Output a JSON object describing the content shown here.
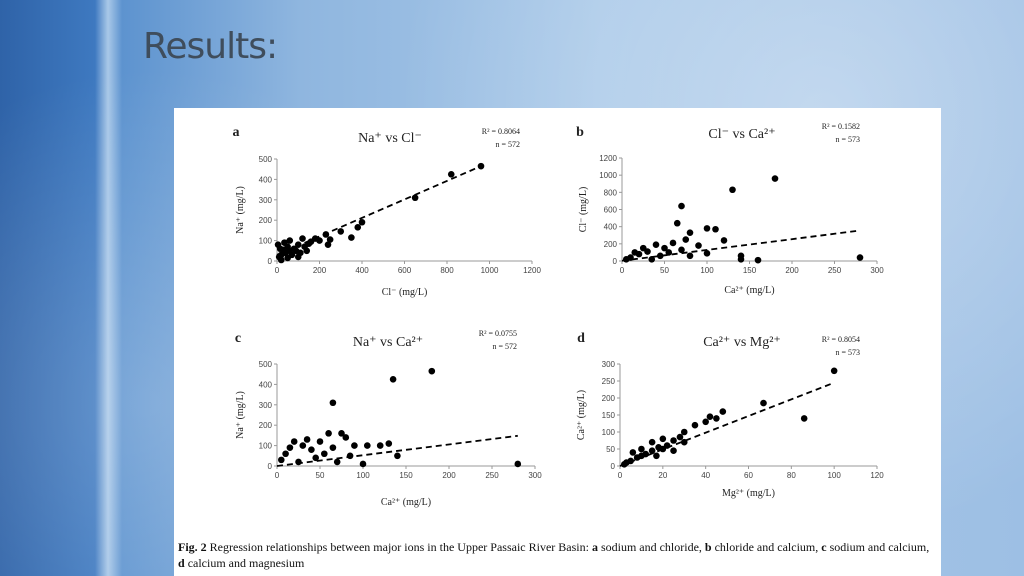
{
  "slide": {
    "title": "Results:"
  },
  "chart_data": [
    {
      "type": "scatter",
      "label": "a",
      "title": "Na⁺ vs Cl⁻",
      "r2": "R² = 0.8064",
      "n": "n = 572",
      "x_label": "Cl⁻ (mg/L)",
      "y_label": "Na⁺ (mg/L)",
      "color": "#000000",
      "x": [
        960,
        820,
        650,
        400,
        380,
        350,
        300,
        230,
        200,
        180,
        150,
        120,
        100,
        80,
        60,
        50,
        40,
        30,
        20,
        10,
        5,
        15,
        70,
        90,
        110,
        130,
        160,
        250,
        240,
        20,
        50,
        100,
        140,
        60,
        35
      ],
      "values": [
        465,
        425,
        310,
        190,
        165,
        115,
        145,
        130,
        100,
        110,
        85,
        110,
        80,
        60,
        50,
        70,
        40,
        55,
        30,
        20,
        80,
        60,
        30,
        50,
        40,
        70,
        95,
        105,
        80,
        5,
        15,
        20,
        50,
        100,
        90
      ],
      "trendline": {
        "x": [
          0,
          960
        ],
        "y": [
          30,
          465
        ]
      },
      "xlim": [
        0,
        1200
      ],
      "xticks": [
        0,
        200,
        400,
        600,
        800,
        1000,
        1200
      ],
      "ylim": [
        0,
        500
      ],
      "yticks": [
        0,
        100,
        200,
        300,
        400,
        500
      ]
    },
    {
      "type": "scatter",
      "label": "b",
      "title": "Cl⁻ vs Ca²⁺",
      "r2": "R² = 0.1582",
      "n": "n = 573",
      "x_label": "Ca²⁺ (mg/L)",
      "y_label": "Cl⁻ (mg/L)",
      "color": "#000000",
      "x": [
        180,
        130,
        70,
        110,
        100,
        65,
        80,
        160,
        280,
        140,
        140,
        120,
        90,
        60,
        50,
        40,
        30,
        20,
        10,
        5,
        25,
        45,
        55,
        70,
        80,
        35,
        15,
        100,
        75
      ],
      "values": [
        960,
        830,
        640,
        370,
        380,
        440,
        330,
        10,
        40,
        60,
        20,
        240,
        180,
        210,
        150,
        190,
        110,
        80,
        40,
        20,
        150,
        60,
        100,
        130,
        60,
        20,
        100,
        90,
        250
      ],
      "trendline": {
        "x": [
          0,
          280
        ],
        "y": [
          3,
          355
        ]
      },
      "xlim": [
        0,
        300
      ],
      "xticks": [
        0,
        50,
        100,
        150,
        200,
        250,
        300
      ],
      "ylim": [
        0,
        1200
      ],
      "yticks": [
        0,
        200,
        400,
        600,
        800,
        1000,
        1200
      ]
    },
    {
      "type": "scatter",
      "label": "c",
      "title": "Na⁺ vs Ca²⁺",
      "r2": "R² = 0.0755",
      "n": "n = 572",
      "x_label": "Ca²⁺ (mg/L)",
      "y_label": "Na⁺ (mg/L)",
      "color": "#000000",
      "x": [
        180,
        135,
        65,
        280,
        130,
        120,
        105,
        140,
        100,
        75,
        80,
        90,
        60,
        50,
        40,
        30,
        20,
        10,
        5,
        25,
        45,
        55,
        65,
        70,
        35,
        15,
        85
      ],
      "values": [
        465,
        425,
        310,
        10,
        110,
        100,
        100,
        50,
        10,
        160,
        140,
        100,
        160,
        120,
        80,
        100,
        120,
        60,
        30,
        20,
        40,
        60,
        90,
        20,
        130,
        90,
        50
      ],
      "trendline": {
        "x": [
          0,
          280
        ],
        "y": [
          0,
          148
        ]
      },
      "xlim": [
        0,
        300
      ],
      "xticks": [
        0,
        50,
        100,
        150,
        200,
        250,
        300
      ],
      "ylim": [
        0,
        500
      ],
      "yticks": [
        0,
        100,
        200,
        300,
        400,
        500
      ]
    },
    {
      "type": "scatter",
      "label": "d",
      "title": "Ca²⁺ vs Mg²⁺",
      "r2": "R² = 0.8054",
      "n": "n = 573",
      "x_label": "Mg²⁺ (mg/L)",
      "y_label": "Ca²⁺ (mg/L)",
      "color": "#000000",
      "x": [
        100,
        86,
        67,
        48,
        45,
        42,
        40,
        35,
        30,
        28,
        25,
        22,
        20,
        18,
        15,
        12,
        10,
        8,
        5,
        3,
        2,
        20,
        25,
        15,
        10,
        30,
        6,
        17
      ],
      "values": [
        280,
        140,
        185,
        160,
        140,
        145,
        130,
        120,
        100,
        85,
        75,
        60,
        50,
        55,
        45,
        35,
        30,
        25,
        15,
        10,
        5,
        80,
        45,
        70,
        50,
        70,
        40,
        30
      ],
      "trendline": {
        "x": [
          0,
          100
        ],
        "y": [
          0,
          245
        ]
      },
      "xlim": [
        0,
        120
      ],
      "xticks": [
        0,
        20,
        40,
        60,
        80,
        100,
        120
      ],
      "ylim": [
        0,
        300
      ],
      "yticks": [
        0,
        50,
        100,
        150,
        200,
        250,
        300
      ]
    }
  ],
  "caption": [
    {
      "text": "Fig. 2",
      "bold": true
    },
    {
      "text": " Regression relationships between major ions in the Upper Passaic River Basin: ",
      "bold": false
    },
    {
      "text": "a",
      "bold": true
    },
    {
      "text": " sodium and chloride, ",
      "bold": false
    },
    {
      "text": "b",
      "bold": true
    },
    {
      "text": " chloride and calcium, ",
      "bold": false
    },
    {
      "text": "c",
      "bold": true
    },
    {
      "text": " sodium and calcium, ",
      "bold": false
    },
    {
      "text": "d",
      "bold": true
    },
    {
      "text": " calcium and magnesium",
      "bold": false
    }
  ]
}
